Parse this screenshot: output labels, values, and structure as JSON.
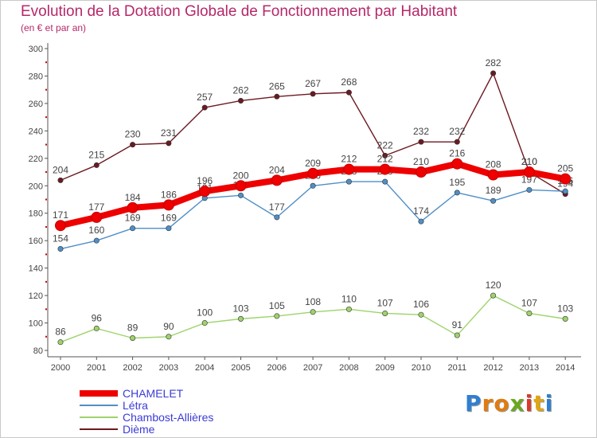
{
  "chart_data": {
    "type": "line",
    "title": "Evolution de la Dotation Globale de Fonctionnement par Habitant",
    "subtitle": "(en € et par an)",
    "xlabel": "",
    "ylabel": "",
    "ylim": [
      80,
      300
    ],
    "yticks": [
      80,
      100,
      120,
      140,
      160,
      180,
      200,
      220,
      240,
      260,
      280,
      300
    ],
    "categories": [
      "2000",
      "2001",
      "2002",
      "2003",
      "2004",
      "2005",
      "2006",
      "2007",
      "2008",
      "2009",
      "2010",
      "2011",
      "2012",
      "2013",
      "2014"
    ],
    "series": [
      {
        "name": "Dième",
        "color": "#6b1a22",
        "values": [
          204,
          215,
          230,
          231,
          257,
          262,
          265,
          267,
          268,
          222,
          232,
          232,
          282,
          210,
          194
        ],
        "labels": [
          "204",
          "215",
          "230",
          "231",
          "257",
          "262",
          "265",
          "267",
          "268",
          "222",
          "232",
          "232",
          "282",
          "210",
          "194"
        ]
      },
      {
        "name": "Létra",
        "color": "#4f8fc8",
        "values": [
          154,
          160,
          169,
          169,
          191,
          193,
          177,
          200,
          203,
          203,
          174,
          195,
          189,
          197,
          196
        ],
        "labels": [
          "154",
          "160",
          "169",
          "169",
          "191",
          "193",
          "177",
          "200",
          "203",
          "203",
          "174",
          "195",
          "189",
          "197",
          "196"
        ]
      },
      {
        "name": "Chambost-Allières",
        "color": "#9ed36b",
        "values": [
          86,
          96,
          89,
          90,
          100,
          103,
          105,
          108,
          110,
          107,
          106,
          91,
          120,
          107,
          103
        ],
        "labels": [
          "86",
          "96",
          "89",
          "90",
          "100",
          "103",
          "105",
          "108",
          "110",
          "107",
          "106",
          "91",
          "120",
          "107",
          "103"
        ]
      },
      {
        "name": "CHAMELET",
        "color": "#ee0000",
        "values": [
          171,
          177,
          184,
          186,
          196,
          200,
          204,
          209,
          212,
          212,
          210,
          216,
          208,
          210,
          205
        ],
        "labels": [
          "171",
          "177",
          "184",
          "186",
          "196",
          "200",
          "204",
          "209",
          "212",
          "212",
          "210",
          "216",
          "208",
          "210",
          "205"
        ]
      }
    ],
    "legend": [
      "CHAMELET",
      "Létra",
      "Chambost-Allières",
      "Dième"
    ],
    "legend_position": "bottom-left",
    "grid": false
  },
  "legend_labels": [
    "CHAMELET",
    "Létra",
    "Chambost-Allières",
    "Dième"
  ],
  "logo": {
    "letters": [
      "P",
      "r",
      "o",
      "x",
      "i",
      "t",
      "i"
    ],
    "colors": [
      "#2f7fd1",
      "#e07b12",
      "#e07b12",
      "#6aa81e",
      "#d93a2b",
      "#e0a512",
      "#2f7fd1"
    ]
  }
}
